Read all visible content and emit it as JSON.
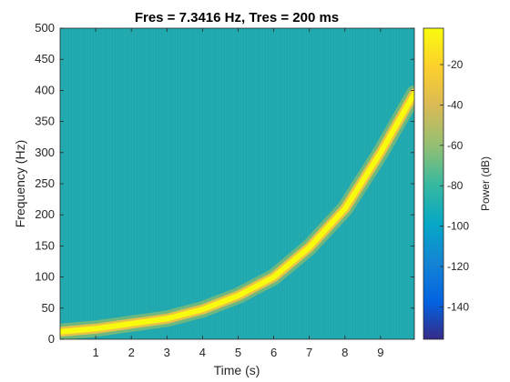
{
  "chart_data": {
    "type": "heatmap",
    "title": "Fres = 7.3416 Hz, Tres = 200 ms",
    "xlabel": "Time (s)",
    "ylabel": "Frequency (Hz)",
    "xlim": [
      0,
      9.95
    ],
    "ylim": [
      0,
      500
    ],
    "xticks": [
      1,
      2,
      3,
      4,
      5,
      6,
      7,
      8,
      9
    ],
    "yticks": [
      0,
      50,
      100,
      150,
      200,
      250,
      300,
      350,
      400,
      450,
      500
    ],
    "colorbar": {
      "label": "Power (dB)",
      "range": [
        -156,
        -2
      ],
      "ticks": [
        -20,
        -40,
        -60,
        -80,
        -100,
        -120,
        -140
      ],
      "colormap": "parula"
    },
    "background_power_db": -75,
    "ridge": {
      "description_points": [
        {
          "time": 0.0,
          "frequency": 12,
          "power_db": -3
        },
        {
          "time": 1.0,
          "frequency": 17,
          "power_db": -3
        },
        {
          "time": 2.0,
          "frequency": 25,
          "power_db": -3
        },
        {
          "time": 3.0,
          "frequency": 33,
          "power_db": -3
        },
        {
          "time": 4.0,
          "frequency": 48,
          "power_db": -3
        },
        {
          "time": 5.0,
          "frequency": 70,
          "power_db": -3
        },
        {
          "time": 6.0,
          "frequency": 100,
          "power_db": -3
        },
        {
          "time": 7.0,
          "frequency": 148,
          "power_db": -3
        },
        {
          "time": 8.0,
          "frequency": 210,
          "power_db": -3
        },
        {
          "time": 9.0,
          "frequency": 300,
          "power_db": -3
        },
        {
          "time": 9.95,
          "frequency": 395,
          "power_db": -3
        }
      ]
    }
  }
}
